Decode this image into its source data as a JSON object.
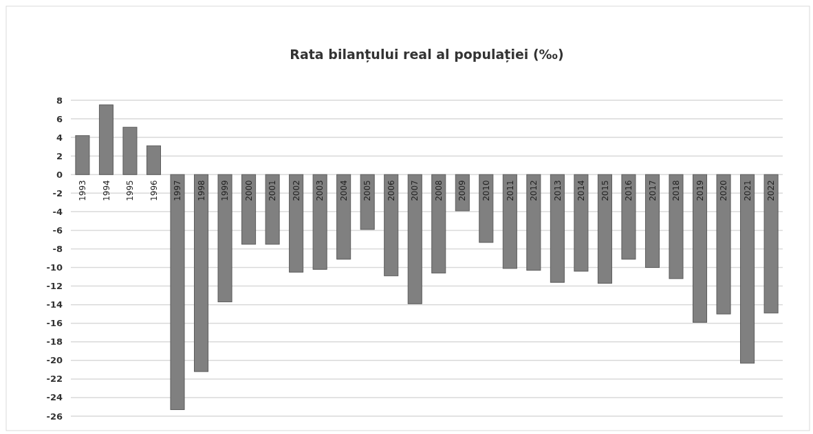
{
  "chart_data": {
    "type": "bar",
    "title": "Rata bilanțului real al populației (‰)",
    "categories": [
      "1993",
      "1994",
      "1995",
      "1996",
      "1997",
      "1998",
      "1999",
      "2000",
      "2001",
      "2002",
      "2003",
      "2004",
      "2005",
      "2006",
      "2007",
      "2008",
      "2009",
      "2010",
      "2011",
      "2012",
      "2013",
      "2014",
      "2015",
      "2016",
      "2017",
      "2018",
      "2019",
      "2020",
      "2021",
      "2022"
    ],
    "values": [
      4.2,
      7.5,
      5.1,
      3.1,
      -25.3,
      -21.2,
      -13.7,
      -7.5,
      -7.5,
      -10.5,
      -10.2,
      -9.1,
      -5.9,
      -10.9,
      -13.9,
      -10.6,
      -3.9,
      -7.3,
      -10.1,
      -10.3,
      -11.6,
      -10.4,
      -11.7,
      -9.1,
      -10.0,
      -11.2,
      -15.9,
      -15.0,
      -20.3,
      -14.9
    ],
    "color": "#808080",
    "ylim": [
      -26,
      8
    ],
    "yticks": [
      -26,
      -24,
      -22,
      -20,
      -18,
      -16,
      -14,
      -12,
      -10,
      -8,
      -6,
      -4,
      -2,
      0,
      2,
      4,
      6,
      8
    ],
    "grid": "y"
  }
}
